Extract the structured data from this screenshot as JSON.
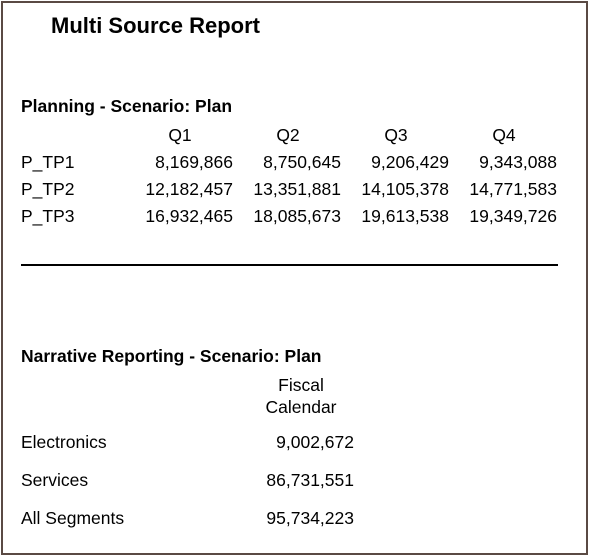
{
  "report": {
    "title": "Multi Source Report"
  },
  "planning": {
    "title": "Planning - Scenario: Plan",
    "columns": [
      "Q1",
      "Q2",
      "Q3",
      "Q4"
    ],
    "rows": [
      {
        "label": "P_TP1",
        "values": [
          "8,169,866",
          "8,750,645",
          "9,206,429",
          "9,343,088"
        ]
      },
      {
        "label": "P_TP2",
        "values": [
          "12,182,457",
          "13,351,881",
          "14,105,378",
          "14,771,583"
        ]
      },
      {
        "label": "P_TP3",
        "values": [
          "16,932,465",
          "18,085,673",
          "19,613,538",
          "19,349,726"
        ]
      }
    ]
  },
  "narrative": {
    "title": "Narrative Reporting - Scenario: Plan",
    "column_line1": "Fiscal",
    "column_line2": "Calendar",
    "rows": [
      {
        "label": "Electronics",
        "value": "9,002,672"
      },
      {
        "label": "Services",
        "value": "86,731,551"
      },
      {
        "label": "All Segments",
        "value": "95,734,223"
      }
    ]
  }
}
